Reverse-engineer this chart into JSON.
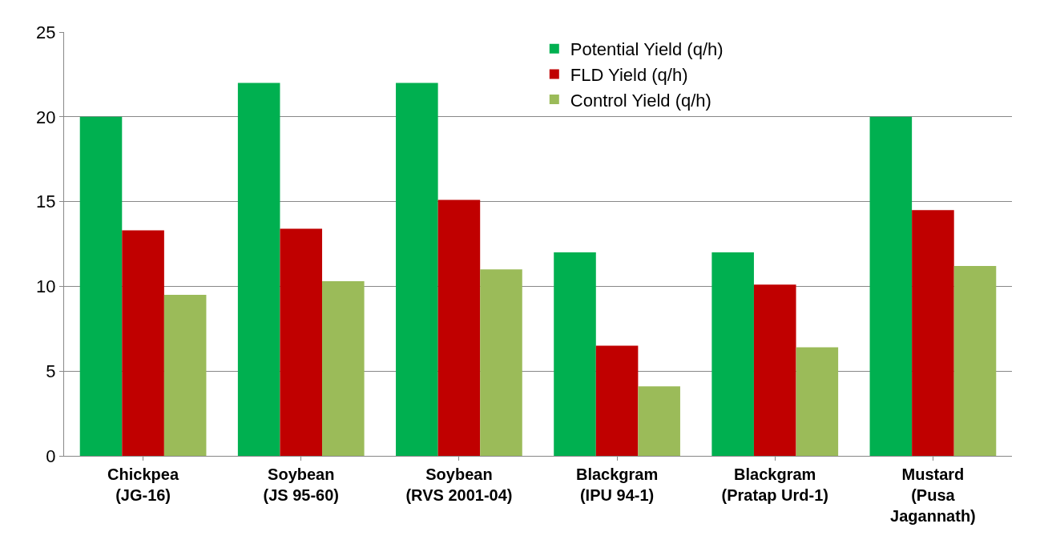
{
  "chart_data": {
    "type": "bar",
    "categories": [
      "Chickpea\n(JG-16)",
      "Soybean\n(JS 95-60)",
      "Soybean\n(RVS 2001-04)",
      "Blackgram\n(IPU 94-1)",
      "Blackgram\n(Pratap Urd-1)",
      "Mustard\n(Pusa\nJagannath)"
    ],
    "series": [
      {
        "name": "Potential Yield (q/h)",
        "color": "#00b050",
        "values": [
          20,
          22,
          22,
          12,
          12,
          20
        ]
      },
      {
        "name": "FLD Yield (q/h)",
        "color": "#c00000",
        "values": [
          13.3,
          13.4,
          15.1,
          6.5,
          10.1,
          14.5
        ]
      },
      {
        "name": "Control Yield (q/h)",
        "color": "#9bbb59",
        "values": [
          9.5,
          10.3,
          11.0,
          4.1,
          6.4,
          11.2
        ]
      }
    ],
    "ylim": [
      0,
      25
    ],
    "yticks": [
      0,
      5,
      10,
      15,
      20,
      25
    ],
    "grid": "y",
    "legend": "top"
  }
}
